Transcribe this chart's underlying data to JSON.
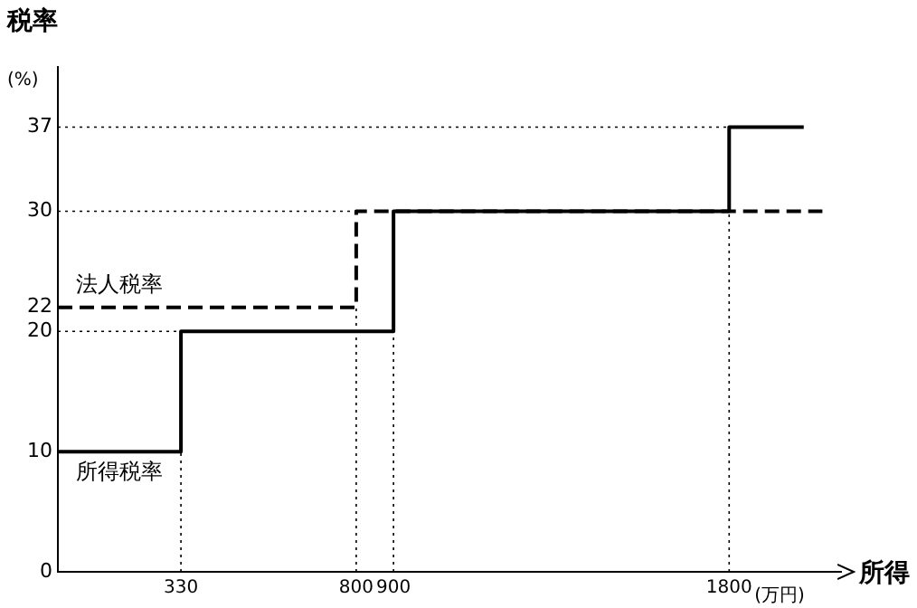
{
  "chart_data": {
    "type": "step",
    "xlabel": "所得",
    "ylabel": "税率",
    "annotations": [
      "(%)",
      "(万円)"
    ],
    "xlim": [
      0,
      2100
    ],
    "ylim": [
      0,
      42
    ],
    "xticks": [
      330,
      800,
      900,
      1800
    ],
    "yticks": [
      0,
      10,
      20,
      22,
      30,
      37
    ],
    "series": [
      {
        "name": "所得税率",
        "color": "#000000",
        "line_style": "solid",
        "x": [
          0,
          330,
          900,
          1800,
          2000
        ],
        "values": [
          10,
          20,
          30,
          37,
          37
        ]
      },
      {
        "name": "法人税率",
        "color": "#000000",
        "line_style": "dashed",
        "x": [
          0,
          800,
          2050
        ],
        "values": [
          22,
          30,
          30
        ]
      }
    ],
    "ref_lines": [
      {
        "axis": "y",
        "value": 20,
        "line_style": "dotted",
        "color": "#000000"
      },
      {
        "axis": "y",
        "value": 30,
        "line_style": "dotted",
        "color": "#000000"
      },
      {
        "axis": "y",
        "value": 37,
        "line_style": "dotted",
        "color": "#000000"
      },
      {
        "axis": "x",
        "value": 330,
        "line_style": "dotted",
        "color": "#000000"
      },
      {
        "axis": "x",
        "value": 800,
        "line_style": "dotted",
        "color": "#000000"
      },
      {
        "axis": "x",
        "value": 900,
        "line_style": "dotted",
        "color": "#000000"
      },
      {
        "axis": "x",
        "value": 1800,
        "line_style": "dotted",
        "color": "#000000"
      }
    ]
  }
}
